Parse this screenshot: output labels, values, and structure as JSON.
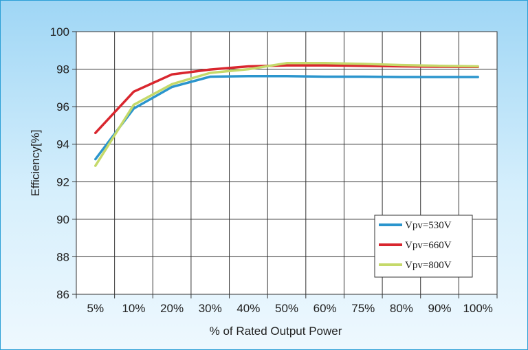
{
  "chart_data": {
    "type": "line",
    "title": "",
    "xlabel": "% of Rated Output Power",
    "ylabel": "Efficiency[%]",
    "categories": [
      "5%",
      "10%",
      "20%",
      "30%",
      "40%",
      "50%",
      "60%",
      "75%",
      "80%",
      "90%",
      "100%"
    ],
    "ylim": [
      86,
      100
    ],
    "yticks": [
      86,
      88,
      90,
      92,
      94,
      96,
      98,
      100
    ],
    "grid": true,
    "legend_position": "bottom-right",
    "series": [
      {
        "name": "Vpv=530V",
        "color": "#2b95cd",
        "values": [
          93.2,
          95.9,
          97.05,
          97.6,
          97.63,
          97.63,
          97.6,
          97.6,
          97.58,
          97.58,
          97.58
        ]
      },
      {
        "name": "Vpv=660V",
        "color": "#d9262e",
        "values": [
          94.6,
          96.8,
          97.72,
          97.98,
          98.15,
          98.2,
          98.2,
          98.18,
          98.15,
          98.13,
          98.12
        ]
      },
      {
        "name": "Vpv=800V",
        "color": "#c5d96a",
        "values": [
          92.85,
          96.1,
          97.2,
          97.8,
          98.0,
          98.32,
          98.32,
          98.28,
          98.22,
          98.18,
          98.15
        ]
      }
    ]
  }
}
